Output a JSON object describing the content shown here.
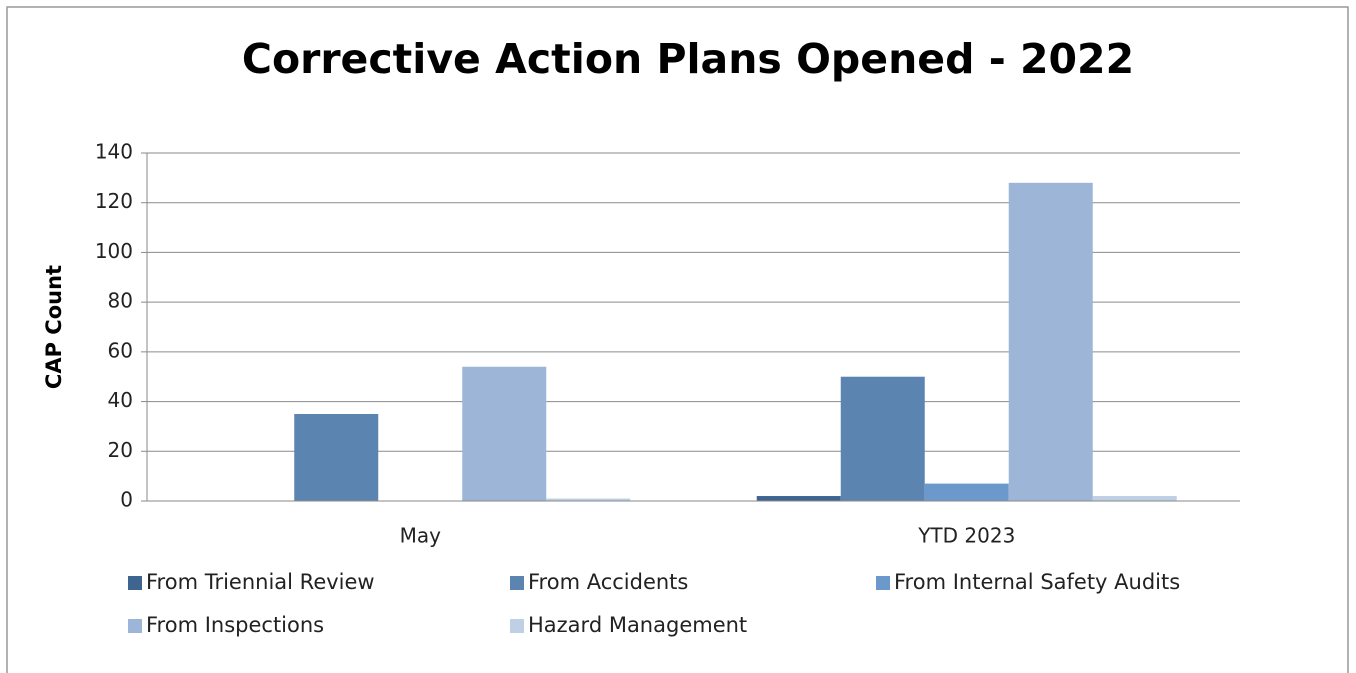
{
  "chart_data": {
    "type": "bar",
    "title": "Corrective Action Plans Opened - 2022",
    "y_label": "CAP Count",
    "categories": [
      "May",
      "YTD 2023"
    ],
    "series": [
      {
        "name": "From Triennial Review",
        "color": "#3e6590",
        "values": [
          0,
          2
        ]
      },
      {
        "name": "From Accidents",
        "color": "#5b84b1",
        "values": [
          35,
          50
        ]
      },
      {
        "name": "From Internal Safety Audits",
        "color": "#6b99cc",
        "values": [
          0,
          7
        ]
      },
      {
        "name": "From Inspections",
        "color": "#9db5d6",
        "values": [
          54,
          128
        ]
      },
      {
        "name": "Hazard Management",
        "color": "#bfcfe6",
        "values": [
          1,
          2
        ]
      }
    ],
    "ylim": [
      0,
      140
    ],
    "yticks": [
      0,
      20,
      40,
      60,
      80,
      100,
      120,
      140
    ],
    "grid": true,
    "legend": "bottom"
  }
}
